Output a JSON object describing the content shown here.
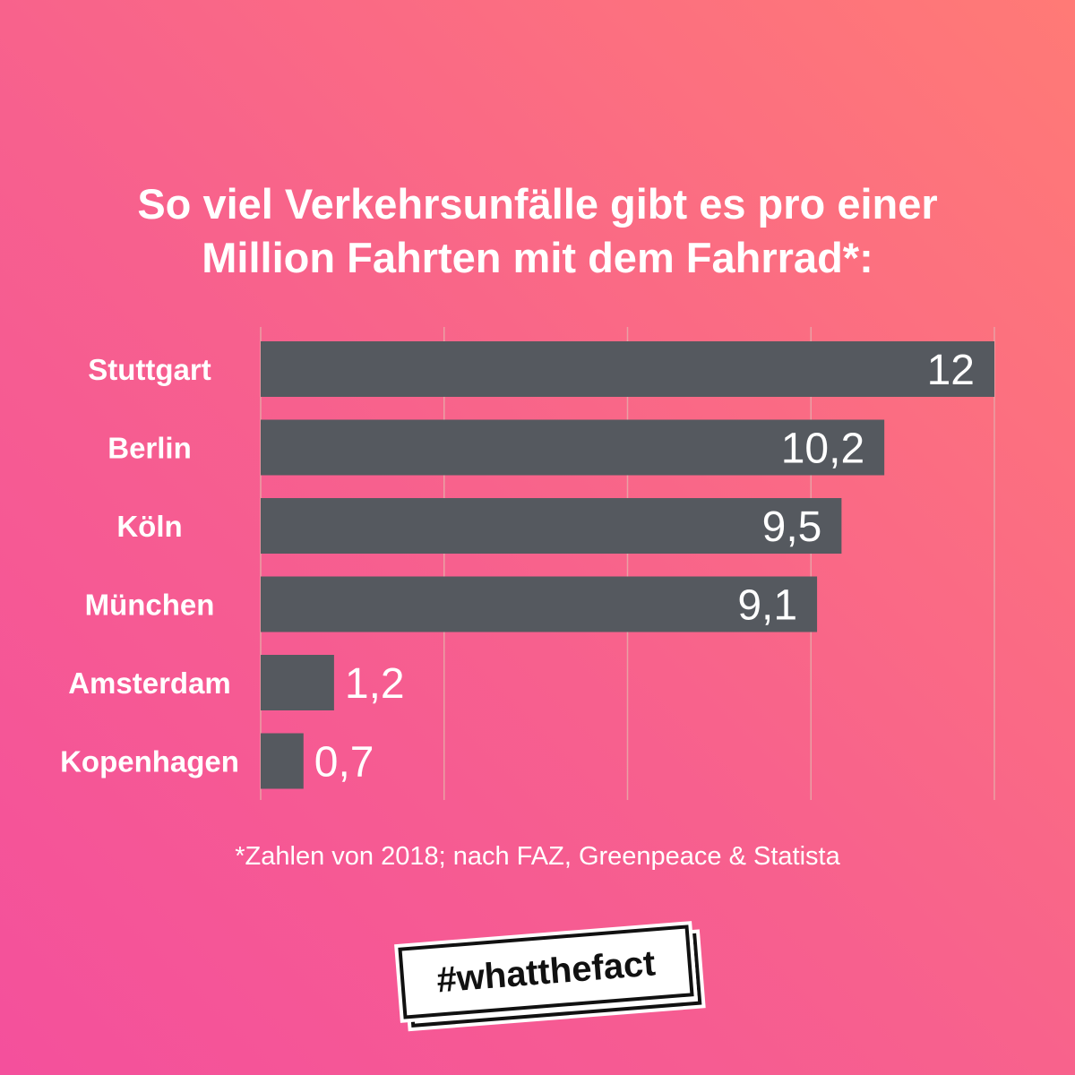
{
  "title_line1": "So viel Verkehrsunfälle gibt es pro einer",
  "title_line2": "Million Fahrten mit dem Fahrrad*:",
  "footnote": "*Zahlen von 2018; nach FAZ, Greenpeace & Statista",
  "logo_text": "#whatthefact",
  "colors": {
    "bar": "#55595f",
    "grid": "#e9a0a4"
  },
  "chart_data": {
    "type": "bar",
    "orientation": "horizontal",
    "title": "So viel Verkehrsunfälle gibt es pro einer Million Fahrten mit dem Fahrrad*:",
    "categories": [
      "Stuttgart",
      "Berlin",
      "Köln",
      "München",
      "Amsterdam",
      "Kopenhagen"
    ],
    "values": [
      12,
      10.2,
      9.5,
      9.1,
      1.2,
      0.7
    ],
    "value_labels": [
      "12",
      "10,2",
      "9,5",
      "9,1",
      "1,2",
      "0,7"
    ],
    "xlim": [
      0,
      12
    ],
    "gridlines": [
      0,
      3,
      6,
      9,
      12
    ],
    "grid": true
  }
}
